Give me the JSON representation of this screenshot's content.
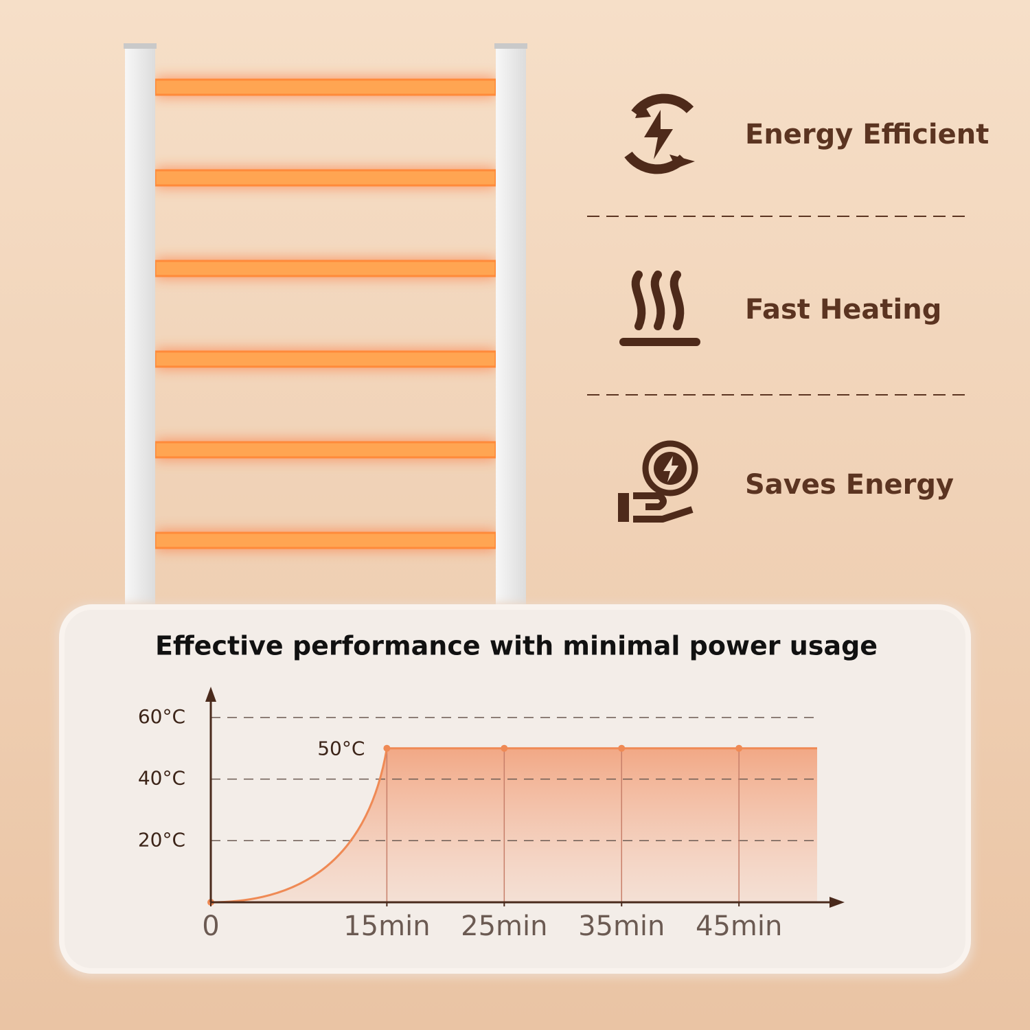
{
  "features": [
    "Energy Efficient",
    "Fast Heating",
    "Saves Energy"
  ],
  "chart_data": {
    "type": "line",
    "title": "Effective performance with minimal power usage",
    "annotation": "50°C",
    "x": [
      0,
      15,
      25,
      35,
      45
    ],
    "series": [
      {
        "color": "#ef8a55",
        "values": [
          0,
          50,
          50,
          50,
          50
        ]
      }
    ],
    "xlim": [
      0,
      54
    ],
    "ylim": [
      0,
      70
    ],
    "xticks": [
      {
        "value": 0,
        "label": "0"
      },
      {
        "value": 15,
        "label": "15min"
      },
      {
        "value": 25,
        "label": "25min"
      },
      {
        "value": 35,
        "label": "35min"
      },
      {
        "value": 45,
        "label": "45min"
      }
    ],
    "yticks": [
      {
        "value": 20,
        "label": "20°C"
      },
      {
        "value": 40,
        "label": "40°C"
      },
      {
        "value": 60,
        "label": "60°C"
      }
    ],
    "grid": true
  }
}
